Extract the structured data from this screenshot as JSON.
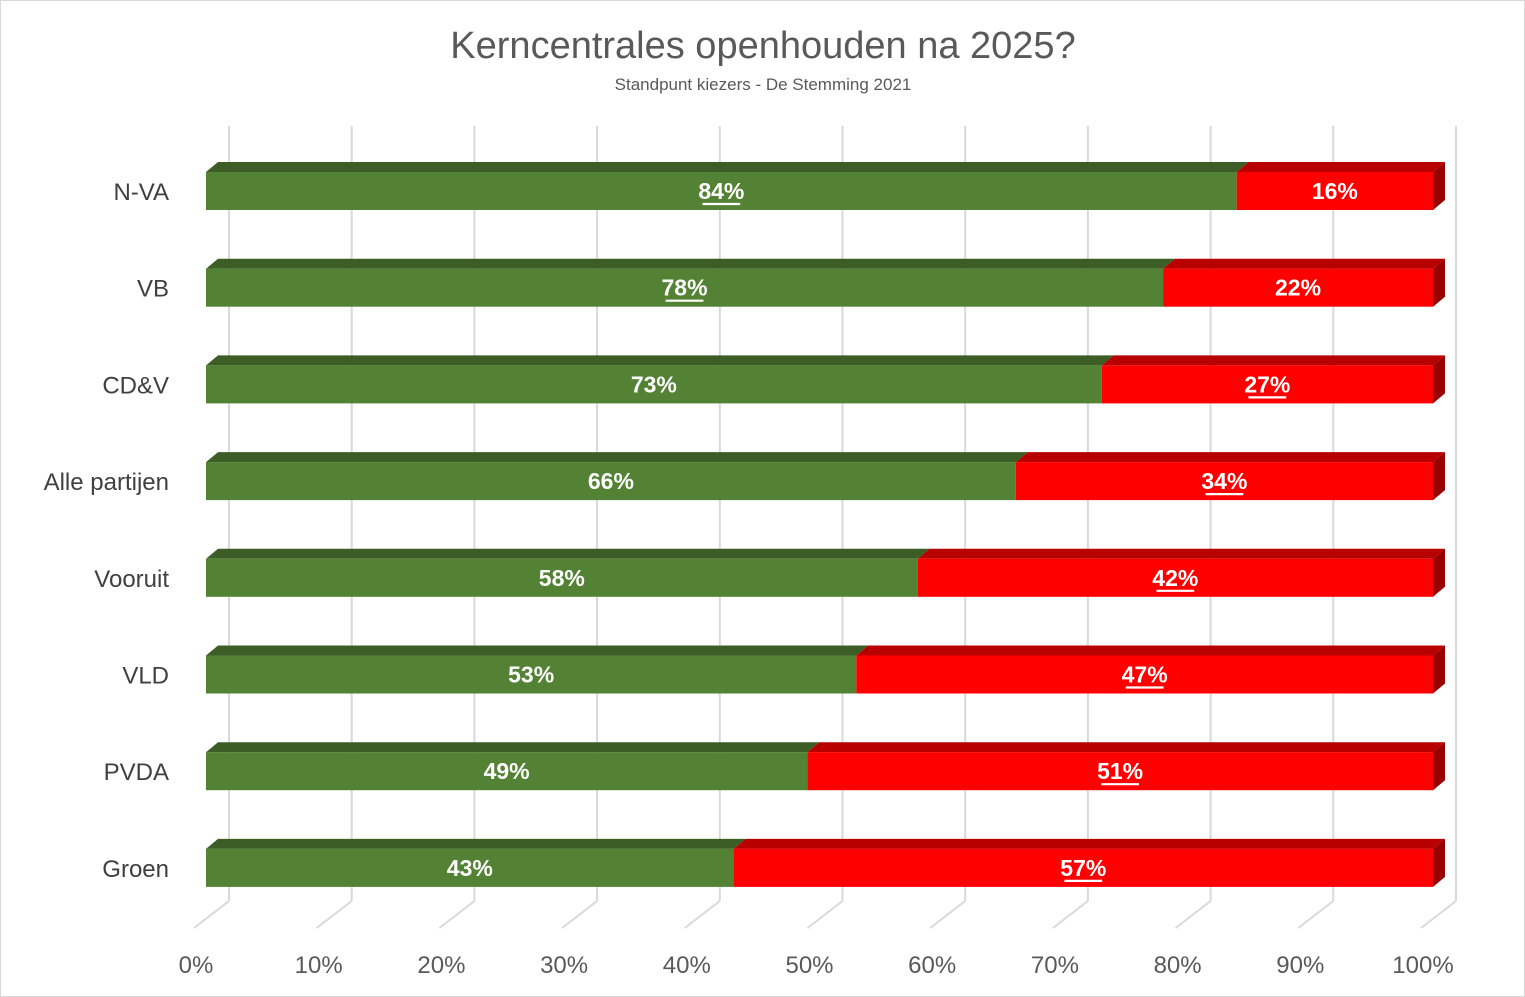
{
  "chart_data": {
    "type": "bar",
    "orientation": "horizontal",
    "stacked": "100%",
    "style": "3d",
    "title": "Kerncentrales openhouden na 2025?",
    "subtitle": "Standpunt kiezers - De Stemming 2021",
    "categories": [
      "N-VA",
      "VB",
      "CD&V",
      "Alle partijen",
      "Vooruit",
      "VLD",
      "PVDA",
      "Groen"
    ],
    "series": [
      {
        "color": "#548235",
        "values": [
          84,
          78,
          73,
          66,
          58,
          53,
          49,
          43
        ],
        "labels": [
          "84%",
          "78%",
          "73%",
          "66%",
          "58%",
          "53%",
          "49%",
          "43%"
        ],
        "label_underlined": [
          true,
          true,
          false,
          false,
          false,
          false,
          false,
          false
        ]
      },
      {
        "color": "#ff0000",
        "values": [
          16,
          22,
          27,
          34,
          42,
          47,
          51,
          57
        ],
        "labels": [
          "16%",
          "22%",
          "27%",
          "34%",
          "42%",
          "47%",
          "51%",
          "57%"
        ],
        "label_underlined": [
          false,
          false,
          true,
          true,
          true,
          true,
          true,
          true
        ]
      }
    ],
    "xlim": [
      0,
      100
    ],
    "x_ticks": [
      "0%",
      "10%",
      "20%",
      "30%",
      "40%",
      "50%",
      "60%",
      "70%",
      "80%",
      "90%",
      "100%"
    ],
    "grid": true,
    "legend": "none"
  }
}
